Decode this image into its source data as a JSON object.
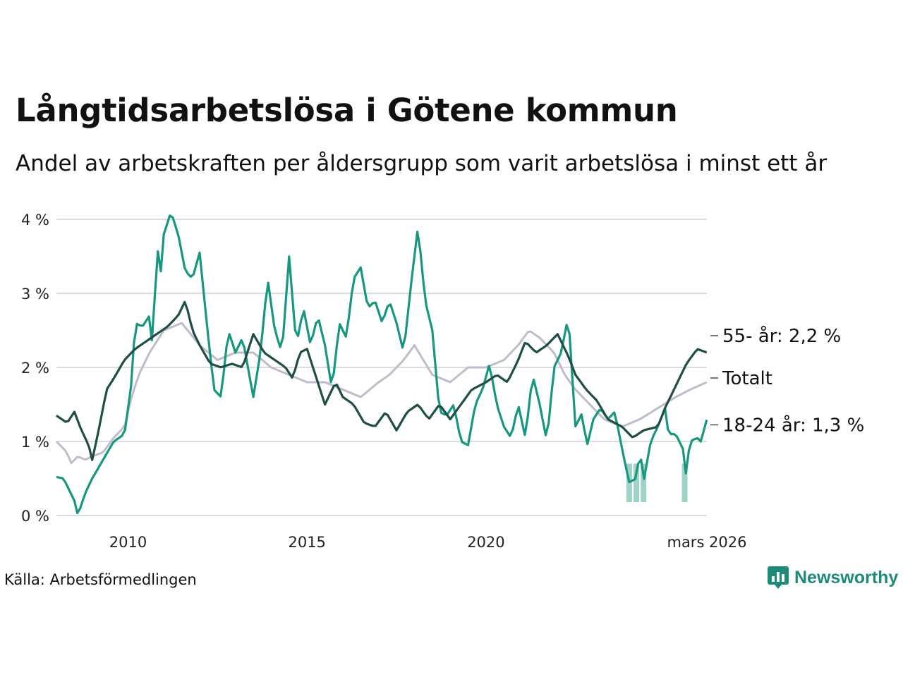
{
  "header": {
    "title": "Långtidsarbetslösa i Götene kommun",
    "subtitle": "Andel av arbetskraften per åldersgrupp som varit arbetslösa i minst ett år"
  },
  "footer": {
    "source": "Källa: Arbetsförmedlingen",
    "brand": "Newsworthy"
  },
  "colors": {
    "total": "#bfbccb",
    "senior": "#1f4e45",
    "youth": "#17977f",
    "youth_band": "#9fd3c8",
    "grid": "#dcdce0",
    "brand": "#1e8a7a"
  },
  "chart_data": {
    "type": "line",
    "title": "Långtidsarbetslösa i Götene kommun",
    "xlabel": "",
    "ylabel": "",
    "x_start": 2008.0,
    "x_step": 0.08333,
    "xlim": [
      2008.0,
      2026.17
    ],
    "ylim": [
      0,
      4.2
    ],
    "y_ticks": [
      0,
      1,
      2,
      3,
      4
    ],
    "y_tick_labels": [
      "0 %",
      "1 %",
      "2 %",
      "3 %",
      "4 %"
    ],
    "x_ticks": [
      2010,
      2015,
      2020,
      2026.17
    ],
    "x_tick_labels": [
      "2010",
      "2015",
      "2020",
      "mars 2026"
    ],
    "series": [
      {
        "key": "total",
        "name": "Totalt",
        "label": "Totalt",
        "knots": [
          [
            2008.0,
            1.0
          ],
          [
            2008.3,
            0.85
          ],
          [
            2008.4,
            0.7
          ],
          [
            2008.6,
            0.8
          ],
          [
            2008.8,
            0.75
          ],
          [
            2009.0,
            0.8
          ],
          [
            2009.3,
            0.85
          ],
          [
            2009.6,
            1.05
          ],
          [
            2009.9,
            1.2
          ],
          [
            2010.1,
            1.6
          ],
          [
            2010.3,
            1.9
          ],
          [
            2010.6,
            2.2
          ],
          [
            2011.0,
            2.5
          ],
          [
            2011.5,
            2.6
          ],
          [
            2012.0,
            2.3
          ],
          [
            2012.5,
            2.1
          ],
          [
            2013.0,
            2.2
          ],
          [
            2013.5,
            2.2
          ],
          [
            2014.0,
            2.0
          ],
          [
            2014.5,
            1.9
          ],
          [
            2015.0,
            1.8
          ],
          [
            2015.5,
            1.8
          ],
          [
            2016.0,
            1.7
          ],
          [
            2016.5,
            1.6
          ],
          [
            2017.0,
            1.8
          ],
          [
            2017.3,
            1.9
          ],
          [
            2017.7,
            2.1
          ],
          [
            2018.0,
            2.3
          ],
          [
            2018.5,
            1.9
          ],
          [
            2019.0,
            1.8
          ],
          [
            2019.5,
            2.0
          ],
          [
            2020.0,
            2.0
          ],
          [
            2020.5,
            2.1
          ],
          [
            2020.9,
            2.3
          ],
          [
            2021.2,
            2.5
          ],
          [
            2021.5,
            2.4
          ],
          [
            2021.9,
            2.2
          ],
          [
            2022.2,
            1.9
          ],
          [
            2022.5,
            1.7
          ],
          [
            2022.9,
            1.5
          ],
          [
            2023.3,
            1.3
          ],
          [
            2023.8,
            1.2
          ],
          [
            2024.3,
            1.3
          ],
          [
            2024.8,
            1.45
          ],
          [
            2025.3,
            1.6
          ],
          [
            2025.7,
            1.7
          ],
          [
            2026.17,
            1.8
          ]
        ],
        "end_value": "1,8"
      },
      {
        "key": "senior",
        "name": "55- år",
        "label": "55- år: 2,2 %",
        "knots": [
          [
            2008.0,
            1.35
          ],
          [
            2008.3,
            1.25
          ],
          [
            2008.5,
            1.4
          ],
          [
            2008.7,
            1.15
          ],
          [
            2008.9,
            0.95
          ],
          [
            2009.0,
            0.75
          ],
          [
            2009.2,
            1.2
          ],
          [
            2009.4,
            1.7
          ],
          [
            2009.6,
            1.85
          ],
          [
            2009.9,
            2.1
          ],
          [
            2010.2,
            2.25
          ],
          [
            2010.5,
            2.35
          ],
          [
            2010.8,
            2.45
          ],
          [
            2011.1,
            2.55
          ],
          [
            2011.4,
            2.7
          ],
          [
            2011.6,
            2.9
          ],
          [
            2011.8,
            2.5
          ],
          [
            2012.0,
            2.3
          ],
          [
            2012.3,
            2.05
          ],
          [
            2012.6,
            2.0
          ],
          [
            2012.9,
            2.05
          ],
          [
            2013.2,
            2.0
          ],
          [
            2013.5,
            2.45
          ],
          [
            2013.8,
            2.2
          ],
          [
            2014.1,
            2.1
          ],
          [
            2014.4,
            2.0
          ],
          [
            2014.6,
            1.85
          ],
          [
            2014.8,
            2.2
          ],
          [
            2015.0,
            2.25
          ],
          [
            2015.2,
            1.95
          ],
          [
            2015.5,
            1.5
          ],
          [
            2015.8,
            1.8
          ],
          [
            2016.0,
            1.6
          ],
          [
            2016.3,
            1.5
          ],
          [
            2016.6,
            1.25
          ],
          [
            2016.9,
            1.2
          ],
          [
            2017.2,
            1.4
          ],
          [
            2017.5,
            1.15
          ],
          [
            2017.8,
            1.4
          ],
          [
            2018.1,
            1.5
          ],
          [
            2018.4,
            1.3
          ],
          [
            2018.7,
            1.5
          ],
          [
            2019.0,
            1.3
          ],
          [
            2019.3,
            1.5
          ],
          [
            2019.6,
            1.7
          ],
          [
            2020.0,
            1.8
          ],
          [
            2020.3,
            1.9
          ],
          [
            2020.6,
            1.8
          ],
          [
            2020.9,
            2.1
          ],
          [
            2021.1,
            2.35
          ],
          [
            2021.4,
            2.2
          ],
          [
            2021.7,
            2.3
          ],
          [
            2022.0,
            2.45
          ],
          [
            2022.3,
            2.15
          ],
          [
            2022.5,
            1.9
          ],
          [
            2022.8,
            1.7
          ],
          [
            2023.1,
            1.55
          ],
          [
            2023.4,
            1.3
          ],
          [
            2023.8,
            1.2
          ],
          [
            2024.1,
            1.05
          ],
          [
            2024.4,
            1.15
          ],
          [
            2024.8,
            1.2
          ],
          [
            2025.0,
            1.45
          ],
          [
            2025.3,
            1.75
          ],
          [
            2025.6,
            2.05
          ],
          [
            2025.9,
            2.25
          ],
          [
            2026.17,
            2.2
          ]
        ],
        "end_value": "2,2"
      },
      {
        "key": "youth",
        "name": "18-24 år",
        "label": "18-24 år: 1,3 %",
        "knots": [
          [
            2008.0,
            0.52
          ],
          [
            2008.2,
            0.5
          ],
          [
            2008.5,
            0.2
          ],
          [
            2008.6,
            0.0
          ],
          [
            2008.8,
            0.3
          ],
          [
            2009.0,
            0.5
          ],
          [
            2009.3,
            0.75
          ],
          [
            2009.6,
            1.0
          ],
          [
            2009.9,
            1.1
          ],
          [
            2010.1,
            1.8
          ],
          [
            2010.2,
            2.6
          ],
          [
            2010.4,
            2.55
          ],
          [
            2010.6,
            2.7
          ],
          [
            2010.7,
            2.2
          ],
          [
            2010.8,
            3.75
          ],
          [
            2010.9,
            3.2
          ],
          [
            2011.0,
            3.8
          ],
          [
            2011.2,
            4.1
          ],
          [
            2011.4,
            3.8
          ],
          [
            2011.6,
            3.3
          ],
          [
            2011.8,
            3.2
          ],
          [
            2012.0,
            3.55
          ],
          [
            2012.2,
            2.6
          ],
          [
            2012.4,
            1.7
          ],
          [
            2012.6,
            1.6
          ],
          [
            2012.8,
            2.5
          ],
          [
            2013.0,
            2.2
          ],
          [
            2013.2,
            2.4
          ],
          [
            2013.5,
            1.6
          ],
          [
            2013.7,
            2.2
          ],
          [
            2013.9,
            3.2
          ],
          [
            2014.1,
            2.5
          ],
          [
            2014.3,
            2.2
          ],
          [
            2014.5,
            3.5
          ],
          [
            2014.7,
            2.3
          ],
          [
            2014.9,
            2.8
          ],
          [
            2015.1,
            2.3
          ],
          [
            2015.3,
            2.7
          ],
          [
            2015.5,
            2.3
          ],
          [
            2015.7,
            1.7
          ],
          [
            2015.9,
            2.6
          ],
          [
            2016.1,
            2.4
          ],
          [
            2016.3,
            3.2
          ],
          [
            2016.5,
            3.35
          ],
          [
            2016.7,
            2.8
          ],
          [
            2016.9,
            2.9
          ],
          [
            2017.1,
            2.6
          ],
          [
            2017.3,
            2.9
          ],
          [
            2017.5,
            2.6
          ],
          [
            2017.7,
            2.2
          ],
          [
            2017.9,
            3.1
          ],
          [
            2018.0,
            3.5
          ],
          [
            2018.1,
            3.9
          ],
          [
            2018.3,
            2.9
          ],
          [
            2018.5,
            2.5
          ],
          [
            2018.7,
            1.4
          ],
          [
            2018.9,
            1.35
          ],
          [
            2019.1,
            1.5
          ],
          [
            2019.3,
            1.0
          ],
          [
            2019.5,
            0.95
          ],
          [
            2019.7,
            1.5
          ],
          [
            2019.9,
            1.7
          ],
          [
            2020.1,
            2.05
          ],
          [
            2020.3,
            1.5
          ],
          [
            2020.5,
            1.2
          ],
          [
            2020.7,
            1.05
          ],
          [
            2020.9,
            1.5
          ],
          [
            2021.1,
            1.05
          ],
          [
            2021.3,
            1.9
          ],
          [
            2021.5,
            1.5
          ],
          [
            2021.7,
            1.0
          ],
          [
            2021.9,
            2.0
          ],
          [
            2022.1,
            2.2
          ],
          [
            2022.3,
            2.7
          ],
          [
            2022.5,
            1.2
          ],
          [
            2022.7,
            1.4
          ],
          [
            2022.8,
            0.9
          ],
          [
            2023.0,
            1.3
          ],
          [
            2023.2,
            1.45
          ],
          [
            2023.4,
            1.3
          ],
          [
            2023.6,
            1.4
          ],
          [
            2023.8,
            0.9
          ],
          [
            2024.0,
            0.45
          ],
          [
            2024.2,
            0.5
          ],
          [
            2024.3,
            0.9
          ],
          [
            2024.4,
            0.45
          ],
          [
            2024.6,
            1.0
          ],
          [
            2024.8,
            1.2
          ],
          [
            2025.0,
            1.45
          ],
          [
            2025.1,
            1.1
          ],
          [
            2025.3,
            1.1
          ],
          [
            2025.5,
            0.9
          ],
          [
            2025.55,
            0.45
          ],
          [
            2025.7,
            1.0
          ],
          [
            2025.9,
            1.05
          ],
          [
            2026.0,
            1.0
          ],
          [
            2026.17,
            1.3
          ]
        ],
        "end_value": "1,3"
      }
    ]
  }
}
